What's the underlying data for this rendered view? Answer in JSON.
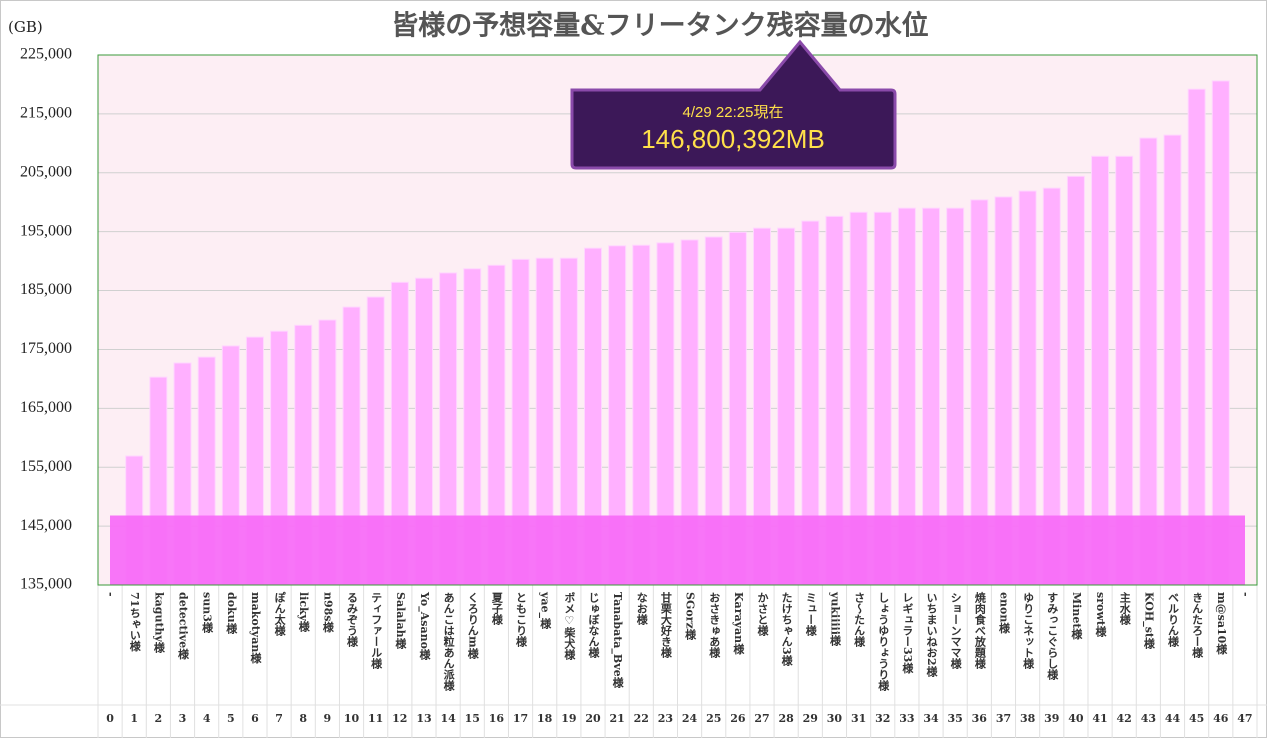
{
  "chart_data": {
    "type": "bar",
    "title": "皆様の予想容量&フリータンク残容量の水位",
    "y_label": "(GB)",
    "categories": [
      "-",
      "71ちゃい様",
      "kaguthy様",
      "detective様",
      "sun3様",
      "doku様",
      "makotyan様",
      "ぽん太様",
      "licky様",
      "n98s様",
      "るみぞう様",
      "ティファール様",
      "Salalah様",
      "Yo_Asano様",
      "あんこは粒あん派様",
      "くろりんm様",
      "夏子様",
      "ともこり様",
      "yae_様",
      "ポメ♡柴犬様",
      "じゅぼなん様",
      "Tanabata_Bve様",
      "なお様",
      "甘栗大好き様",
      "SGorz様",
      "おさきゅあ様",
      "Karayan様",
      "かさと様",
      "たけちゃん3様",
      "ミュー様",
      "yukiiiii様",
      "さ〜たん様",
      "しょうゆりょうり様",
      "レギュラー33様",
      "いちまいねお2様",
      "ショーンママ様",
      "焼肉食べ放題様",
      "enon様",
      "ゆりこネット様",
      "すみっこぐらし様",
      "Minet様",
      "srowt様",
      "主水様",
      "KOH_st様",
      "ベルりん様",
      "きんたろー様",
      "m@sa10様",
      "-"
    ],
    "indices": [
      0,
      1,
      2,
      3,
      4,
      5,
      6,
      7,
      8,
      9,
      10,
      11,
      12,
      13,
      14,
      15,
      16,
      17,
      18,
      19,
      20,
      21,
      22,
      23,
      24,
      25,
      26,
      27,
      28,
      29,
      30,
      31,
      32,
      33,
      34,
      35,
      36,
      37,
      38,
      39,
      40,
      41,
      42,
      43,
      44,
      45,
      46,
      47
    ],
    "values": [
      null,
      156900,
      170300,
      172700,
      173700,
      175600,
      177100,
      178100,
      179100,
      180000,
      182200,
      183900,
      186400,
      187100,
      188000,
      188700,
      189300,
      190300,
      190500,
      190500,
      192200,
      192600,
      192700,
      193100,
      193600,
      194100,
      194900,
      195600,
      195600,
      196800,
      197600,
      198300,
      198300,
      199000,
      199000,
      199000,
      200400,
      200900,
      201900,
      202400,
      204400,
      207800,
      207800,
      210900,
      211400,
      219200,
      220600,
      null
    ],
    "color": "#ffb0ff",
    "water_level": 146800,
    "water_color": "#f86ef8",
    "annotation": {
      "time": "4/29 22:25現在",
      "amount": "146,800,392MB"
    },
    "ylim": [
      135000,
      225000
    ],
    "yticks": [
      {
        "value": 135000,
        "label": "135,000"
      },
      {
        "value": 145000,
        "label": "145,000"
      },
      {
        "value": 155000,
        "label": "155,000"
      },
      {
        "value": 165000,
        "label": "165,000"
      },
      {
        "value": 175000,
        "label": "175,000"
      },
      {
        "value": 185000,
        "label": "185,000"
      },
      {
        "value": 195000,
        "label": "195,000"
      },
      {
        "value": 205000,
        "label": "205,000"
      },
      {
        "value": 215000,
        "label": "215,000"
      },
      {
        "value": 225000,
        "label": "225,000"
      }
    ],
    "grid": true
  }
}
